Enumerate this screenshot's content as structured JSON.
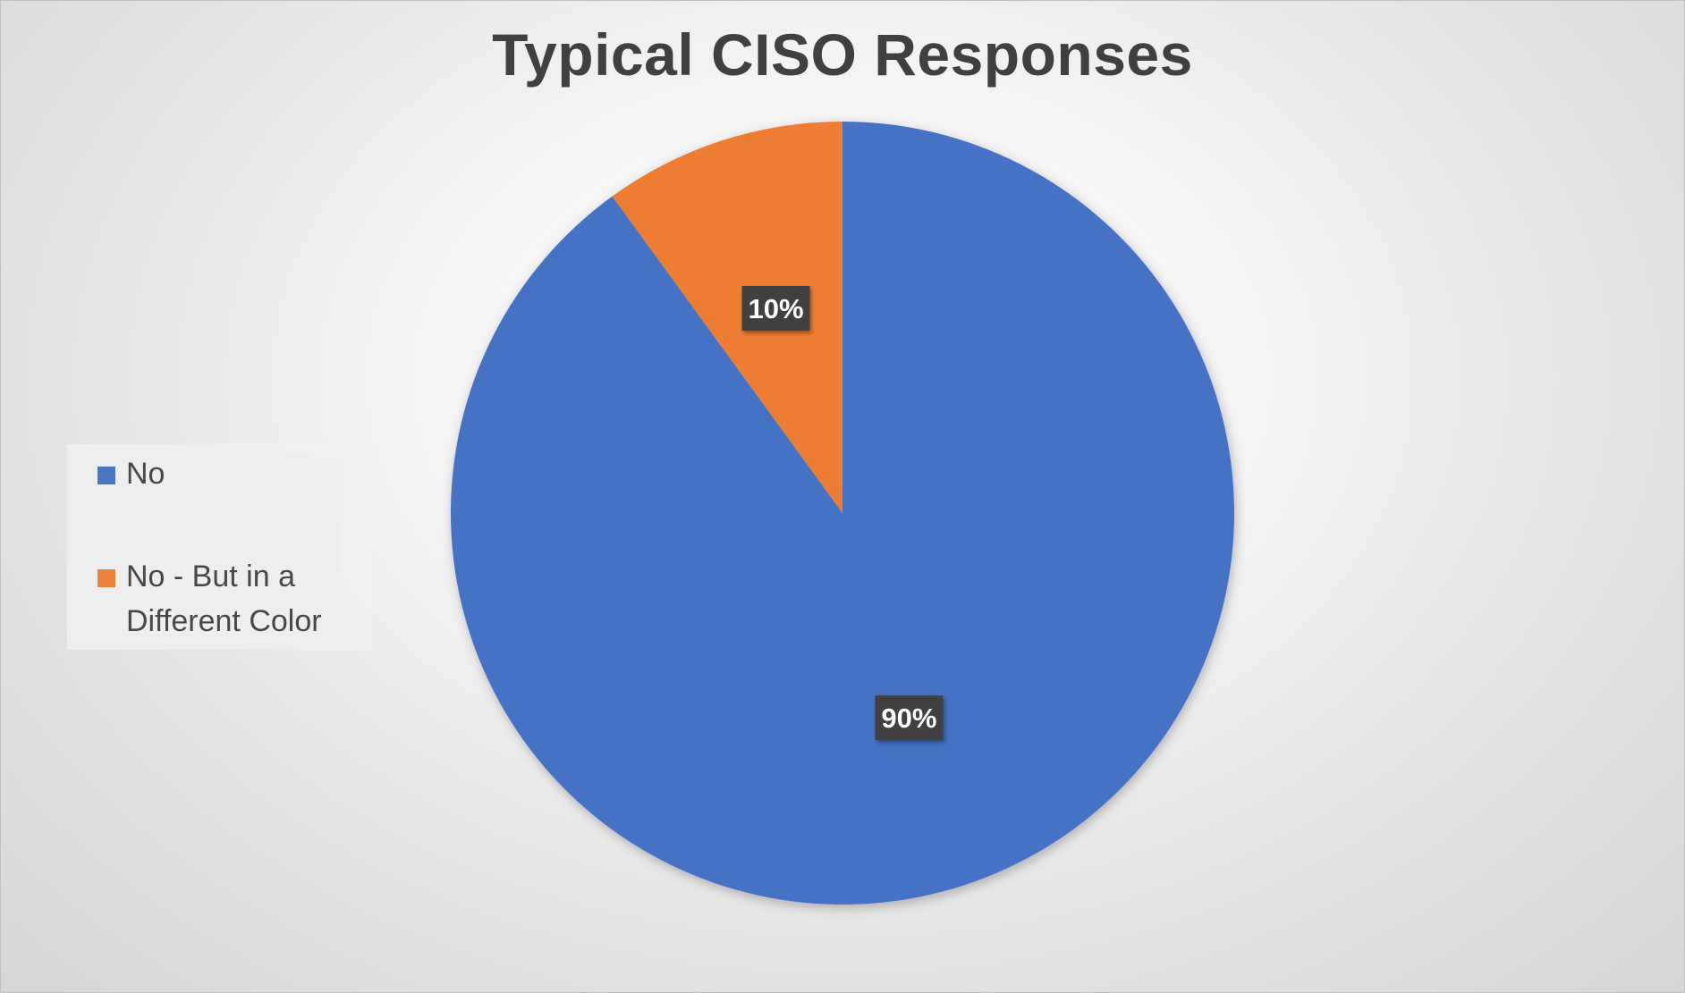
{
  "chart_data": {
    "type": "pie",
    "title": "Typical CISO Responses",
    "categories": [
      "No",
      "No - But in a Different Color"
    ],
    "values": [
      90,
      10
    ],
    "data_labels": [
      "90%",
      "10%"
    ],
    "colors": [
      "#4472C4",
      "#ED7D31"
    ],
    "legend_position": "left"
  }
}
